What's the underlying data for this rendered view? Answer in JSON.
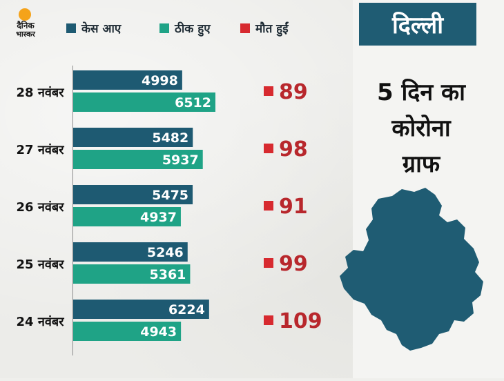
{
  "logo": {
    "line1": "दैनिक",
    "line2": "भास्कर"
  },
  "legend": [
    {
      "label": "केस आए",
      "color": "#1e5a72"
    },
    {
      "label": "ठीक हुए",
      "color": "#1fa386"
    },
    {
      "label": "मौत हुईं",
      "color": "#d72a2f"
    }
  ],
  "panel": {
    "title": "दिल्ली",
    "subtitle": [
      "5 दिन का",
      "कोरोना",
      "ग्राफ"
    ]
  },
  "chart_data": {
    "type": "bar",
    "categories": [
      "28 नवंबर",
      "27 नवंबर",
      "26 नवंबर",
      "25 नवंबर",
      "24 नवंबर"
    ],
    "series": [
      {
        "name": "केस आए",
        "values": [
          4998,
          5482,
          5475,
          5246,
          6224
        ],
        "color": "#1e5a72"
      },
      {
        "name": "ठीक हुए",
        "values": [
          6512,
          5937,
          4937,
          5361,
          4943
        ],
        "color": "#1fa386"
      },
      {
        "name": "मौत हुईं",
        "values": [
          89,
          98,
          91,
          99,
          109
        ],
        "color": "#d72a2f"
      }
    ],
    "orientation": "horizontal",
    "xlim": [
      0,
      6512
    ],
    "value_labels": true,
    "grid": false
  }
}
